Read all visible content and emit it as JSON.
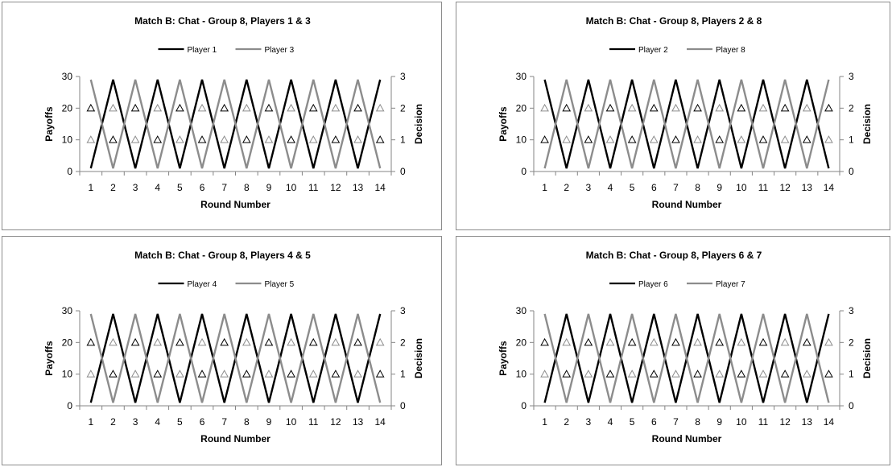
{
  "chart_data": [
    {
      "type": "line",
      "title": "Match B: Chat - Group 8, Players 1 & 3",
      "xlabel": "Round Number",
      "ylabel": "Payoffs",
      "y2label": "Decision",
      "categories": [
        "1",
        "2",
        "3",
        "4",
        "5",
        "6",
        "7",
        "8",
        "9",
        "10",
        "11",
        "12",
        "13",
        "14"
      ],
      "ylim": [
        0,
        30
      ],
      "y2lim": [
        0,
        3
      ],
      "yticks": [
        "0",
        "10",
        "20",
        "30"
      ],
      "y2ticks": [
        "0",
        "1",
        "2",
        "3"
      ],
      "legend_position": "top",
      "series": [
        {
          "name": "Player 1",
          "color": "#000000",
          "axis": "payoffs",
          "marker": "none",
          "values": [
            1,
            29,
            1,
            29,
            1,
            29,
            1,
            29,
            1,
            29,
            1,
            29,
            1,
            29
          ]
        },
        {
          "name": "Player 3",
          "color": "#8c8c8c",
          "axis": "payoffs",
          "marker": "none",
          "values": [
            29,
            1,
            29,
            1,
            29,
            1,
            29,
            1,
            29,
            1,
            29,
            1,
            29,
            1
          ]
        },
        {
          "name": "",
          "color": "#000000",
          "axis": "decision",
          "marker": "triangle",
          "values": [
            2,
            1,
            2,
            1,
            2,
            1,
            2,
            1,
            2,
            1,
            2,
            1,
            2,
            1
          ]
        },
        {
          "name": "",
          "color": "#8c8c8c",
          "axis": "decision",
          "marker": "triangle",
          "values": [
            1,
            2,
            1,
            2,
            1,
            2,
            1,
            2,
            1,
            2,
            1,
            2,
            1,
            2
          ]
        }
      ]
    },
    {
      "type": "line",
      "title": "Match B: Chat - Group 8, Players 2 & 8",
      "xlabel": "Round Number",
      "ylabel": "Payoffs",
      "y2label": "Decision",
      "categories": [
        "1",
        "2",
        "3",
        "4",
        "5",
        "6",
        "7",
        "8",
        "9",
        "10",
        "11",
        "12",
        "13",
        "14"
      ],
      "ylim": [
        0,
        30
      ],
      "y2lim": [
        0,
        3
      ],
      "yticks": [
        "0",
        "10",
        "20",
        "30"
      ],
      "y2ticks": [
        "0",
        "1",
        "2",
        "3"
      ],
      "legend_position": "top",
      "series": [
        {
          "name": "Player 2",
          "color": "#000000",
          "axis": "payoffs",
          "marker": "none",
          "values": [
            29,
            1,
            29,
            1,
            29,
            1,
            29,
            1,
            29,
            1,
            29,
            1,
            29,
            1
          ]
        },
        {
          "name": "Player 8",
          "color": "#8c8c8c",
          "axis": "payoffs",
          "marker": "none",
          "values": [
            1,
            29,
            1,
            29,
            1,
            29,
            1,
            29,
            1,
            29,
            1,
            29,
            1,
            29
          ]
        },
        {
          "name": "",
          "color": "#000000",
          "axis": "decision",
          "marker": "triangle",
          "values": [
            1,
            2,
            1,
            2,
            1,
            2,
            1,
            2,
            1,
            2,
            1,
            2,
            1,
            2
          ]
        },
        {
          "name": "",
          "color": "#8c8c8c",
          "axis": "decision",
          "marker": "triangle",
          "values": [
            2,
            1,
            2,
            1,
            2,
            1,
            2,
            1,
            2,
            1,
            2,
            1,
            2,
            1
          ]
        }
      ]
    },
    {
      "type": "line",
      "title": "Match B: Chat - Group 8, Players 4 & 5",
      "xlabel": "Round Number",
      "ylabel": "Payoffs",
      "y2label": "Decision",
      "categories": [
        "1",
        "2",
        "3",
        "4",
        "5",
        "6",
        "7",
        "8",
        "9",
        "10",
        "11",
        "12",
        "13",
        "14"
      ],
      "ylim": [
        0,
        30
      ],
      "y2lim": [
        0,
        3
      ],
      "yticks": [
        "0",
        "10",
        "20",
        "30"
      ],
      "y2ticks": [
        "0",
        "1",
        "2",
        "3"
      ],
      "legend_position": "top",
      "series": [
        {
          "name": "Player 4",
          "color": "#000000",
          "axis": "payoffs",
          "marker": "none",
          "values": [
            1,
            29,
            1,
            29,
            1,
            29,
            1,
            29,
            1,
            29,
            1,
            29,
            1,
            29
          ]
        },
        {
          "name": "Player 5",
          "color": "#8c8c8c",
          "axis": "payoffs",
          "marker": "none",
          "values": [
            29,
            1,
            29,
            1,
            29,
            1,
            29,
            1,
            29,
            1,
            29,
            1,
            29,
            1
          ]
        },
        {
          "name": "",
          "color": "#000000",
          "axis": "decision",
          "marker": "triangle",
          "values": [
            2,
            1,
            2,
            1,
            2,
            1,
            2,
            1,
            2,
            1,
            2,
            1,
            2,
            1
          ]
        },
        {
          "name": "",
          "color": "#8c8c8c",
          "axis": "decision",
          "marker": "triangle",
          "values": [
            1,
            2,
            1,
            2,
            1,
            2,
            1,
            2,
            1,
            2,
            1,
            2,
            1,
            2
          ]
        }
      ]
    },
    {
      "type": "line",
      "title": "Match B: Chat - Group 8, Players 6 & 7",
      "xlabel": "Round Number",
      "ylabel": "Payoffs",
      "y2label": "Decision",
      "categories": [
        "1",
        "2",
        "3",
        "4",
        "5",
        "6",
        "7",
        "8",
        "9",
        "10",
        "11",
        "12",
        "13",
        "14"
      ],
      "ylim": [
        0,
        30
      ],
      "y2lim": [
        0,
        3
      ],
      "yticks": [
        "0",
        "10",
        "20",
        "30"
      ],
      "y2ticks": [
        "0",
        "1",
        "2",
        "3"
      ],
      "legend_position": "top",
      "series": [
        {
          "name": "Player 6",
          "color": "#000000",
          "axis": "payoffs",
          "marker": "none",
          "values": [
            1,
            29,
            1,
            29,
            1,
            29,
            1,
            29,
            1,
            29,
            1,
            29,
            1,
            29
          ]
        },
        {
          "name": "Player 7",
          "color": "#8c8c8c",
          "axis": "payoffs",
          "marker": "none",
          "values": [
            29,
            1,
            29,
            1,
            29,
            1,
            29,
            1,
            29,
            1,
            29,
            1,
            29,
            1
          ]
        },
        {
          "name": "",
          "color": "#000000",
          "axis": "decision",
          "marker": "triangle",
          "values": [
            2,
            1,
            2,
            1,
            2,
            1,
            2,
            1,
            2,
            1,
            2,
            1,
            2,
            1
          ]
        },
        {
          "name": "",
          "color": "#8c8c8c",
          "axis": "decision",
          "marker": "triangle",
          "values": [
            1,
            2,
            1,
            2,
            1,
            2,
            1,
            2,
            1,
            2,
            1,
            2,
            1,
            2
          ]
        }
      ]
    }
  ]
}
